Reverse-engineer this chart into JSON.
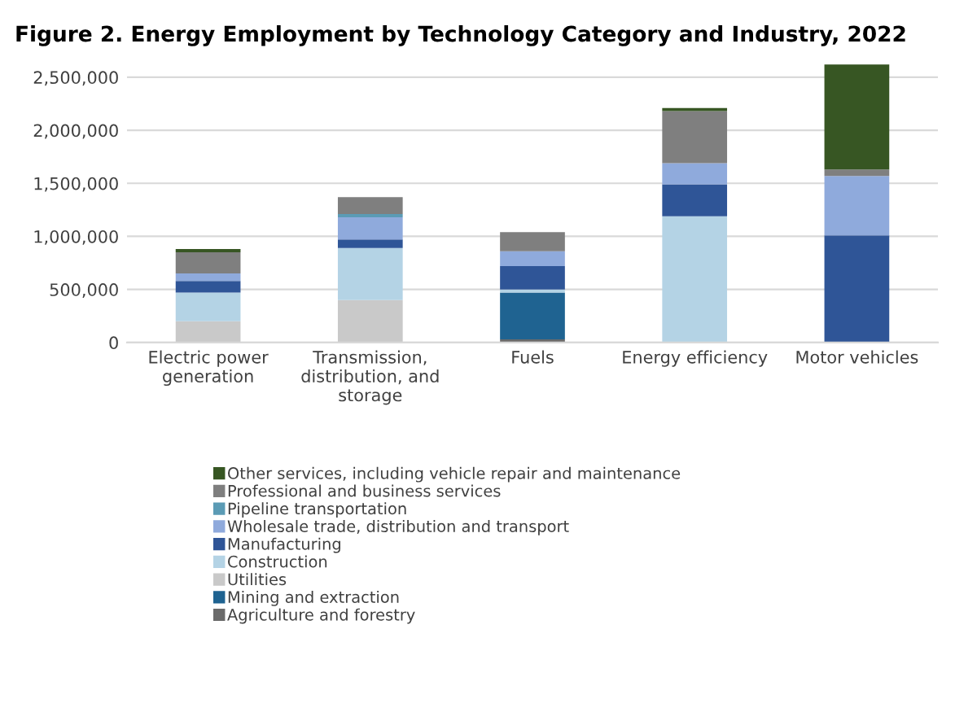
{
  "chart_data": {
    "type": "bar",
    "title": "Figure 2. Energy Employment by Technology Category and Industry, 2022",
    "categories": [
      "Electric power generation",
      "Transmission, distribution, and storage",
      "Fuels",
      "Energy efficiency",
      "Motor vehicles"
    ],
    "stacked": true,
    "ylim": [
      0,
      2650000
    ],
    "yticks": [
      {
        "value": 0,
        "label": "0"
      },
      {
        "value": 500000,
        "label": "500,000"
      },
      {
        "value": 1000000,
        "label": "1,000,000"
      },
      {
        "value": 1500000,
        "label": "1,500,000"
      },
      {
        "value": 2000000,
        "label": "2,000,000"
      },
      {
        "value": 2500000,
        "label": "2,500,000"
      }
    ],
    "grid": "y",
    "legend": "bottom",
    "series": [
      {
        "name": "Agriculture and forestry",
        "color": "#6b6b6b",
        "values": [
          0,
          0,
          30000,
          0,
          0
        ]
      },
      {
        "name": "Mining and extraction",
        "color": "#1f6391",
        "values": [
          0,
          0,
          440000,
          0,
          0
        ]
      },
      {
        "name": "Utilities",
        "color": "#c9c9c9",
        "values": [
          200000,
          400000,
          0,
          0,
          0
        ]
      },
      {
        "name": "Construction",
        "color": "#b4d3e5",
        "values": [
          270000,
          490000,
          30000,
          1190000,
          0
        ]
      },
      {
        "name": "Manufacturing",
        "color": "#2f5597",
        "values": [
          110000,
          80000,
          220000,
          300000,
          1010000
        ]
      },
      {
        "name": "Wholesale trade, distribution and transport",
        "color": "#8faadc",
        "values": [
          70000,
          210000,
          140000,
          200000,
          560000
        ]
      },
      {
        "name": "Pipeline transportation",
        "color": "#5b9bb5",
        "values": [
          0,
          30000,
          0,
          0,
          0
        ]
      },
      {
        "name": "Professional and business services",
        "color": "#7f7f7f",
        "values": [
          200000,
          160000,
          180000,
          490000,
          60000
        ]
      },
      {
        "name": "Other services, including vehicle repair and maintenance",
        "color": "#375623",
        "values": [
          30000,
          0,
          0,
          30000,
          990000
        ]
      }
    ]
  }
}
